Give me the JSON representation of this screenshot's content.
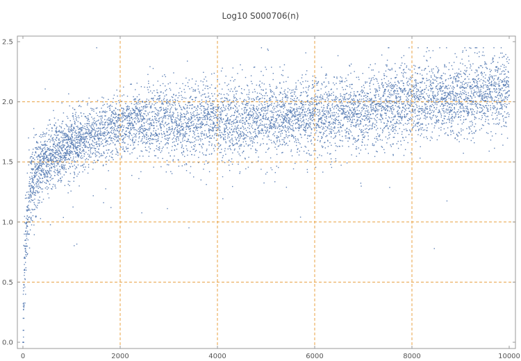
{
  "chart_data": {
    "type": "scatter",
    "title": "Log10 S000706(n)",
    "xlabel": "",
    "ylabel": "",
    "xlim": [
      0,
      10000
    ],
    "ylim": [
      0,
      2.5
    ],
    "x_ticks": [
      0,
      2000,
      4000,
      6000,
      8000,
      10000
    ],
    "x_tick_labels": [
      "0",
      "2000",
      "4000",
      "6000",
      "8000",
      "10000"
    ],
    "y_ticks": [
      0.0,
      0.5,
      1.0,
      1.5,
      2.0,
      2.5
    ],
    "y_tick_labels": [
      "0.0",
      "0.5",
      "1.0",
      "1.5",
      "2.0",
      "2.5"
    ],
    "grid": true,
    "grid_style": "dashed",
    "legend": "none",
    "colors": {
      "points": "#5b7fb5",
      "grid": "#e8a040",
      "axis": "#999999",
      "text": "#555555"
    },
    "series": [
      {
        "values_summary": "approximately 10000 points y = log10(a(n)); dense band rising from about 0.3 near n=0 to about 1.8 at n=2000, then spread mostly between 1.4 and 2.3 through n=10000",
        "points": [
          [
            1,
            0.0
          ],
          [
            10,
            0.3
          ],
          [
            20,
            0.48
          ],
          [
            30,
            0.6
          ],
          [
            40,
            0.7
          ],
          [
            50,
            0.78
          ],
          [
            60,
            0.85
          ],
          [
            70,
            0.95
          ],
          [
            80,
            1.0
          ],
          [
            90,
            1.05
          ],
          [
            100,
            1.12
          ],
          [
            120,
            1.2
          ],
          [
            150,
            1.25
          ],
          [
            180,
            1.3
          ],
          [
            200,
            1.35
          ],
          [
            250,
            1.4
          ],
          [
            300,
            1.45
          ],
          [
            350,
            1.47
          ],
          [
            400,
            1.5
          ],
          [
            500,
            1.52
          ],
          [
            600,
            1.55
          ],
          [
            700,
            1.58
          ],
          [
            800,
            1.6
          ],
          [
            900,
            1.62
          ],
          [
            1000,
            1.65
          ],
          [
            1200,
            1.68
          ],
          [
            1400,
            1.72
          ],
          [
            1600,
            1.75
          ],
          [
            1800,
            1.78
          ],
          [
            2000,
            1.8
          ],
          [
            2200,
            1.82
          ],
          [
            2400,
            1.84
          ],
          [
            2600,
            1.85
          ],
          [
            2800,
            1.84
          ],
          [
            3000,
            1.82
          ],
          [
            3200,
            1.8
          ],
          [
            3400,
            1.82
          ],
          [
            3600,
            1.84
          ],
          [
            3800,
            1.86
          ],
          [
            4000,
            1.85
          ],
          [
            4200,
            1.84
          ],
          [
            4400,
            1.83
          ],
          [
            4600,
            1.84
          ],
          [
            4800,
            1.86
          ],
          [
            5000,
            1.87
          ],
          [
            5200,
            1.86
          ],
          [
            5400,
            1.87
          ],
          [
            5600,
            1.88
          ],
          [
            5800,
            1.89
          ],
          [
            6000,
            1.9
          ],
          [
            6200,
            1.9
          ],
          [
            6400,
            1.91
          ],
          [
            6600,
            1.92
          ],
          [
            6800,
            1.93
          ],
          [
            7000,
            1.94
          ],
          [
            7200,
            1.95
          ],
          [
            7400,
            1.96
          ],
          [
            7600,
            1.97
          ],
          [
            7800,
            1.98
          ],
          [
            8000,
            1.99
          ],
          [
            8200,
            2.0
          ],
          [
            8400,
            2.01
          ],
          [
            8600,
            2.02
          ],
          [
            8800,
            2.03
          ],
          [
            9000,
            2.04
          ],
          [
            9200,
            2.05
          ],
          [
            9400,
            2.06
          ],
          [
            9600,
            2.07
          ],
          [
            9800,
            2.08
          ],
          [
            10000,
            2.09
          ]
        ]
      }
    ]
  }
}
